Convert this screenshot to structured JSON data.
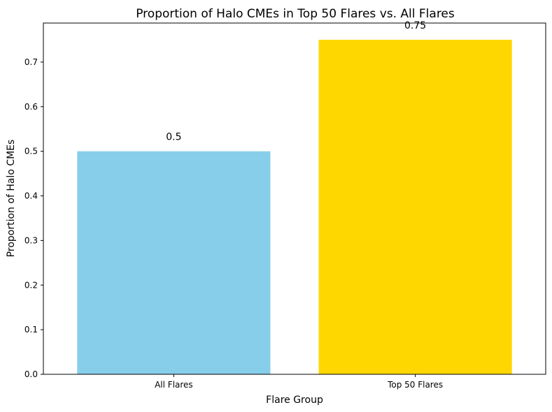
{
  "chart_data": {
    "type": "bar",
    "title": "Proportion of Halo CMEs in Top 50 Flares vs. All Flares",
    "xlabel": "Flare Group",
    "ylabel": "Proportion of Halo CMEs",
    "categories": [
      "All Flares",
      "Top 50 Flares"
    ],
    "values": [
      0.5,
      0.75
    ],
    "data_labels": [
      "0.5",
      "0.75"
    ],
    "colors": [
      "#87ceeb",
      "#ffd700"
    ],
    "ylim": [
      0,
      0.7875
    ],
    "yticks": [
      0.0,
      0.1,
      0.2,
      0.3,
      0.4,
      0.5,
      0.6,
      0.7
    ],
    "ytick_labels": [
      "0.0",
      "0.1",
      "0.2",
      "0.3",
      "0.4",
      "0.5",
      "0.6",
      "0.7"
    ],
    "grid": false,
    "legend": "none"
  }
}
